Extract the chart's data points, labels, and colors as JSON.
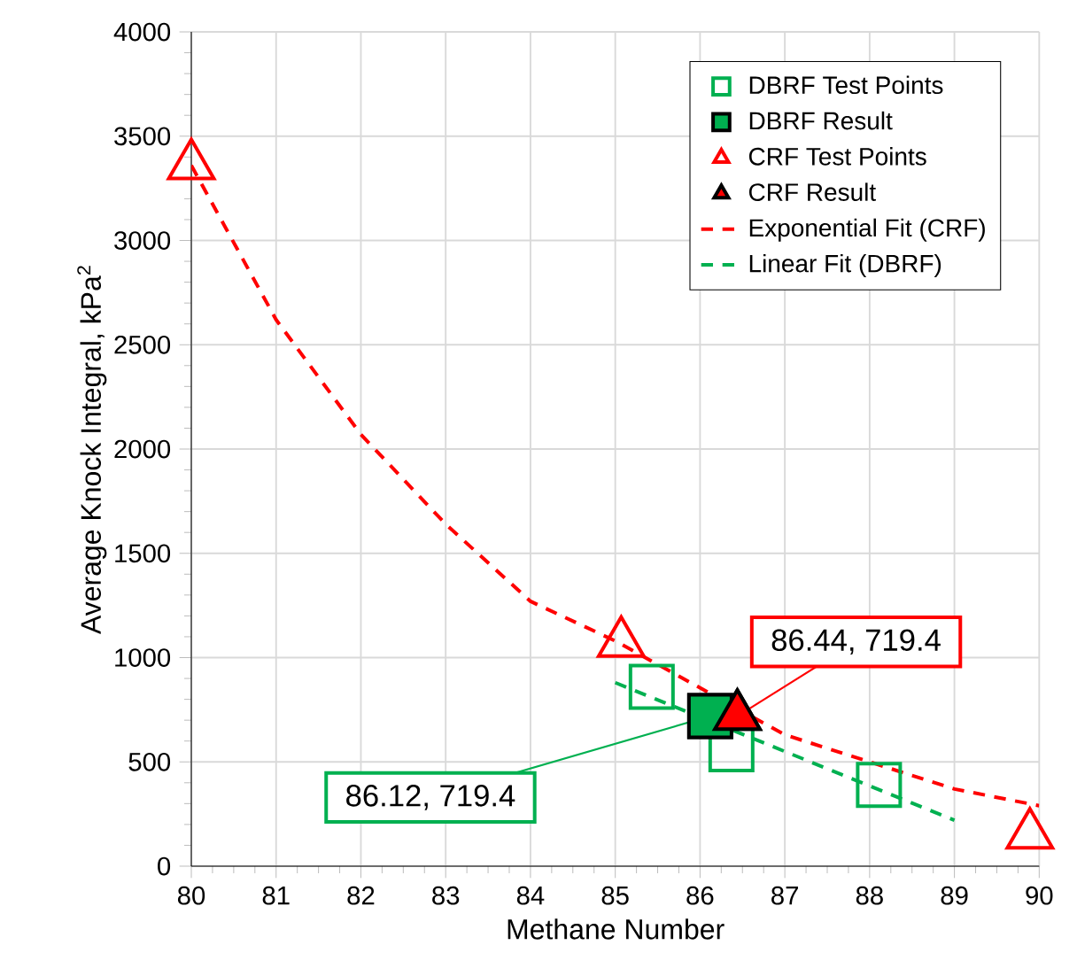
{
  "chart_data": {
    "type": "scatter",
    "xlabel": "Methane Number",
    "ylabel": "Average Knock Integral, kPa$^{2}$",
    "xlim": [
      80,
      90
    ],
    "xticks": [
      80,
      81,
      82,
      83,
      84,
      85,
      86,
      87,
      88,
      89,
      90
    ],
    "ylim": [
      0,
      4000
    ],
    "yticks": [
      0,
      500,
      1000,
      1500,
      2000,
      2500,
      3000,
      3500,
      4000
    ],
    "grid": true,
    "legend": "top right",
    "series": [
      {
        "name": "DBRF Test Points",
        "marker": "square",
        "color": "#00b050",
        "x": [
          85.43,
          86.37,
          88.11
        ],
        "values": [
          860,
          560,
          390
        ]
      },
      {
        "name": "DBRF Result",
        "marker": "square",
        "color": "#00b050",
        "x": [
          86.12
        ],
        "values": [
          719.4
        ]
      },
      {
        "name": "CRF Test Points",
        "marker": "triangle",
        "color": "#ff0000",
        "x": [
          80.0,
          85.07,
          89.89
        ],
        "values": [
          3360,
          1070,
          150
        ]
      },
      {
        "name": "CRF Result",
        "marker": "triangle",
        "color": "#ff0000",
        "x": [
          86.44
        ],
        "values": [
          719.4
        ]
      },
      {
        "name": "Exponential Fit (CRF)",
        "type": "line",
        "line_style": "dashed",
        "color": "#ff0000",
        "x": [
          80,
          81,
          82,
          83,
          84,
          85,
          87,
          88,
          89,
          90
        ],
        "values": [
          3360,
          2620,
          2070,
          1640,
          1270,
          1080,
          630,
          500,
          370,
          290
        ]
      },
      {
        "name": "Linear Fit (DBRF)",
        "type": "line",
        "line_style": "dashed",
        "color": "#00b050",
        "x": [
          85,
          89
        ],
        "values": [
          880,
          220
        ]
      }
    ],
    "annotations": [
      {
        "text": "86.12, 719.4",
        "x": 86.12,
        "y": 719.4
      },
      {
        "text": "86.44, 719.4",
        "x": 86.44,
        "y": 719.4
      }
    ]
  }
}
